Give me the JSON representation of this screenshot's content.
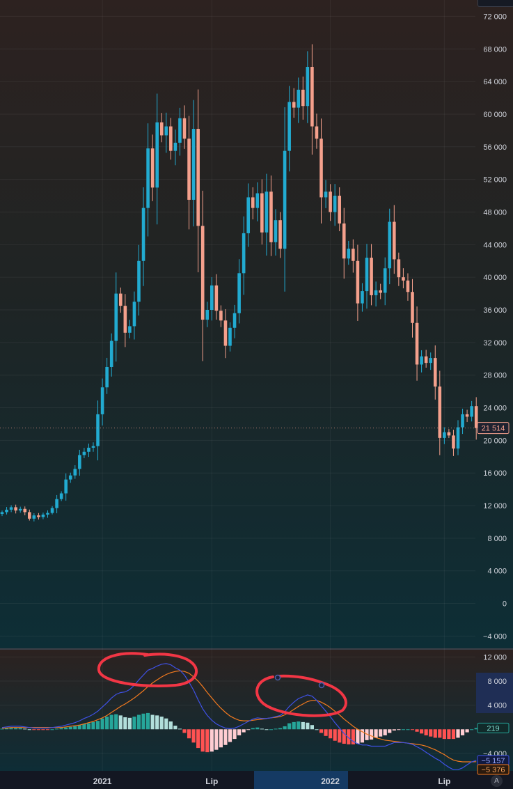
{
  "colors": {
    "up": "#22ABD1",
    "down": "#F4A08C",
    "macd_line": "#3F51E6",
    "signal_line": "#F37A1F",
    "hist_pos_strong": "#26A69A",
    "hist_pos_weak": "#B2DFDB",
    "hist_neg_strong": "#FF5252",
    "hist_neg_weak": "#FFCDD2",
    "annotation": "#F23645",
    "last_price": "#F4A08C",
    "axis_text": "#D1D4DC"
  },
  "chart_data": [
    {
      "type": "candlestick",
      "interval": "weekly",
      "y_ticks": [
        "72 000",
        "68 000",
        "64 000",
        "60 000",
        "56 000",
        "52 000",
        "48 000",
        "44 000",
        "40 000",
        "36 000",
        "32 000",
        "28 000",
        "24 000",
        "20 000",
        "16 000",
        "12 000",
        "8 000",
        "4 000",
        "0",
        "−4 000"
      ],
      "ylim": [
        -5500,
        74000
      ],
      "grid": true,
      "x_ticks": [
        "2021",
        "Lip",
        "2022",
        "Lip"
      ],
      "last_price_label": "21 514",
      "last_price": 21514,
      "closes": [
        11200,
        11500,
        11800,
        11400,
        11600,
        11200,
        10400,
        10800,
        10600,
        10900,
        11100,
        11700,
        12800,
        13500,
        15200,
        15700,
        16500,
        18200,
        18600,
        19100,
        19300,
        23200,
        26500,
        29000,
        32200,
        38000,
        36500,
        33200,
        34000,
        37000,
        42000,
        48500,
        55800,
        51000,
        59000,
        57400,
        58500,
        55500,
        56500,
        59500,
        57000,
        49500,
        58200,
        46300,
        34800,
        36000,
        39000,
        35900,
        34700,
        31600,
        33800,
        35600,
        40500,
        45400,
        49800,
        48500,
        50300,
        45500,
        50500,
        44300,
        47000,
        43500,
        55500,
        61500,
        60800,
        63000,
        61000,
        65800,
        58500,
        57000,
        49800,
        50500,
        48000,
        50000,
        46600,
        42300,
        43500,
        42000,
        36800,
        38300,
        42400,
        37800,
        38400,
        38100,
        41100,
        46800,
        42200,
        40000,
        39600,
        38200,
        34400,
        29300,
        30300,
        29500,
        30100,
        26600,
        20300,
        21000,
        20600,
        19000,
        21600,
        23200,
        22900,
        24200,
        21514
      ],
      "macd_line": [
        300,
        400,
        500,
        500,
        500,
        400,
        300,
        200,
        200,
        200,
        200,
        300,
        400,
        500,
        700,
        900,
        1100,
        1400,
        1800,
        2100,
        2500,
        3000,
        3700,
        4400,
        5200,
        5800,
        6100,
        6200,
        6600,
        7300,
        8200,
        9000,
        9800,
        10100,
        10500,
        10800,
        10900,
        10700,
        10200,
        9800,
        9000,
        7800,
        6500,
        4900,
        3400,
        2300,
        1500,
        900,
        500,
        200,
        100,
        200,
        500,
        900,
        1300,
        1700,
        1900,
        1800,
        1800,
        1900,
        2100,
        2300,
        2900,
        3800,
        4500,
        5100,
        5400,
        5700,
        5500,
        4800,
        3900,
        3000,
        2100,
        1100,
        200,
        -700,
        -1400,
        -2000,
        -2400,
        -2600,
        -2600,
        -2800,
        -2800,
        -2800,
        -2800,
        -2500,
        -2200,
        -2200,
        -2200,
        -2300,
        -2500,
        -2900,
        -3300,
        -3800,
        -4300,
        -4800,
        -5200,
        -5800,
        -6300,
        -6700,
        -6700,
        -6400,
        -5900,
        -5400,
        -5157
      ],
      "signal_line": [
        200,
        200,
        300,
        300,
        300,
        300,
        300,
        300,
        300,
        300,
        300,
        300,
        300,
        300,
        400,
        500,
        600,
        700,
        900,
        1100,
        1300,
        1600,
        1900,
        2300,
        2800,
        3300,
        3800,
        4200,
        4700,
        5200,
        5800,
        6400,
        7100,
        7700,
        8200,
        8700,
        9100,
        9400,
        9600,
        9700,
        9600,
        9300,
        8700,
        8000,
        7100,
        6100,
        5200,
        4300,
        3500,
        2800,
        2200,
        1800,
        1500,
        1400,
        1400,
        1500,
        1600,
        1700,
        1800,
        1900,
        2000,
        2100,
        2400,
        2800,
        3300,
        3800,
        4200,
        4600,
        4800,
        4800,
        4500,
        4100,
        3600,
        3000,
        2400,
        1700,
        1100,
        500,
        0,
        -400,
        -800,
        -1100,
        -1400,
        -1600,
        -1800,
        -1900,
        -2000,
        -2100,
        -2200,
        -2300,
        -2400,
        -2500,
        -2600,
        -2800,
        -3100,
        -3400,
        -3800,
        -4200,
        -4700,
        -5100,
        -5300,
        -5400,
        -5400,
        -5400,
        -5376
      ],
      "histogram_last_label": "219",
      "macd_last_label": "−5 157",
      "signal_last_label": "−5 376",
      "macd_y_ticks": [
        "12 000",
        "8 000",
        "4 000",
        "−4 000"
      ],
      "macd_ylim": [
        -6900,
        13200
      ]
    }
  ]
}
